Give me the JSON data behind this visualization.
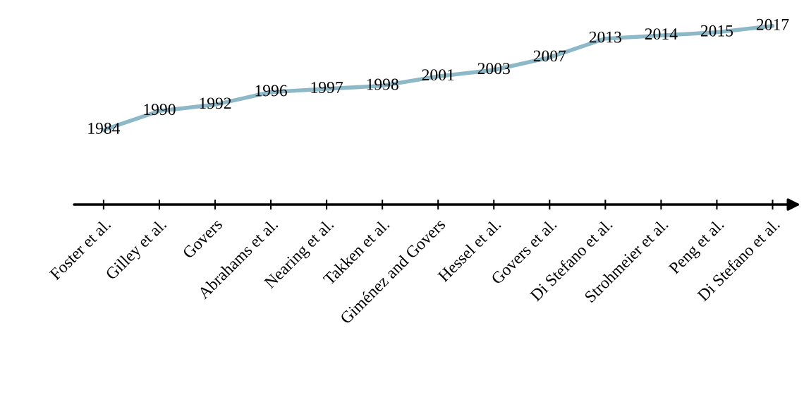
{
  "chart_data": {
    "type": "line",
    "categories": [
      "Foster et al.",
      "Gilley et al.",
      "Govers",
      "Abrahams et al.",
      "Nearing et al.",
      "Takken et al.",
      "Giménez and Govers",
      "Hessel et al.",
      "Govers et al.",
      "Di Stefano et al.",
      "Strohmeier et al.",
      "Peng et al.",
      "Di Stefano et al."
    ],
    "series": [
      {
        "color": "#8db8c8",
        "values": [
          1984,
          1990,
          1992,
          1996,
          1997,
          1998,
          2001,
          2003,
          2007,
          2013,
          2014,
          2015,
          2017
        ]
      }
    ],
    "data_labels": true,
    "grid": false,
    "marker": "none",
    "line_style": "solid",
    "tick_labels": "x"
  }
}
